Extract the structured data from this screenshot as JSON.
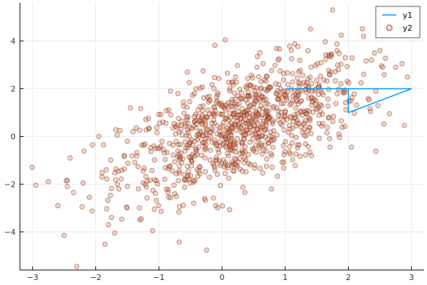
{
  "chart_data": {
    "type": "scatter",
    "title": "",
    "xlabel": "",
    "ylabel": "",
    "xlim": [
      -3.2,
      3.2
    ],
    "ylim": [
      -5.6,
      5.6
    ],
    "xticks": [
      -3,
      -2,
      -1,
      0,
      1,
      2,
      3
    ],
    "yticks": [
      -4,
      -2,
      0,
      2,
      4
    ],
    "xtick_labels": [
      "−3",
      "−2",
      "−1",
      "0",
      "1",
      "2",
      "3"
    ],
    "ytick_labels": [
      "−4",
      "−2",
      "0",
      "2",
      "4"
    ],
    "grid": true,
    "legend_position": "top-right",
    "series": [
      {
        "name": "y1",
        "type": "line",
        "color": "#009AFA",
        "x": [
          1,
          3,
          2,
          2
        ],
        "y": [
          2,
          2,
          1,
          2
        ]
      },
      {
        "name": "y2",
        "type": "scatter",
        "color": "#E36F47",
        "opacity": 0.3,
        "note_values": "approximate sample of ~1000 correlated bivariate-normal points; mean (0.3, 0.4), sd_x ~0.95, sd_y ~1.45, correlation ~0.6",
        "x": [
          -2.95,
          -2.75,
          -2.6,
          -2.5,
          -2.45,
          -2.35,
          -2.3,
          -2.2,
          -2.1,
          -2.05,
          -1.95,
          -1.9,
          -1.8,
          -1.75,
          -1.7,
          -1.55,
          -1.5,
          -1.45,
          -1.3,
          -1.25,
          -1.1,
          -1.05,
          -0.95,
          -0.85,
          -0.75,
          -0.7,
          -0.55,
          -0.45,
          -0.35,
          -0.2,
          -0.1,
          0.05,
          0.15,
          0.25,
          0.35,
          0.45,
          0.55,
          0.65,
          0.8,
          0.9,
          1.0,
          1.1,
          1.2,
          1.3,
          1.4,
          1.5,
          1.6,
          1.7,
          1.75,
          1.85,
          1.95,
          2.05,
          2.2,
          2.35,
          2.5,
          2.65,
          2.75,
          2.85
        ],
        "y": [
          -2.05,
          -1.9,
          -2.9,
          -4.15,
          -2.1,
          -2.35,
          -5.45,
          -1.95,
          -2.55,
          -0.35,
          0.0,
          -1.7,
          -3.7,
          -3.4,
          -4.05,
          -0.8,
          -0.2,
          1.2,
          -3.5,
          -1.95,
          -3.95,
          -0.5,
          -0.2,
          -1.35,
          -2.4,
          1.8,
          2.7,
          -2.8,
          -1.3,
          0.95,
          -2.9,
          4.05,
          -0.1,
          1.7,
          -1.1,
          2.15,
          1.0,
          3.05,
          0.6,
          3.25,
          0.85,
          2.0,
          1.7,
          0.3,
          4.5,
          2.35,
          1.75,
          2.6,
          5.3,
          0.1,
          3.3,
          -0.45,
          2.25,
          1.05,
          3.6,
          0.95,
          2.9,
          3.05
        ]
      }
    ]
  }
}
